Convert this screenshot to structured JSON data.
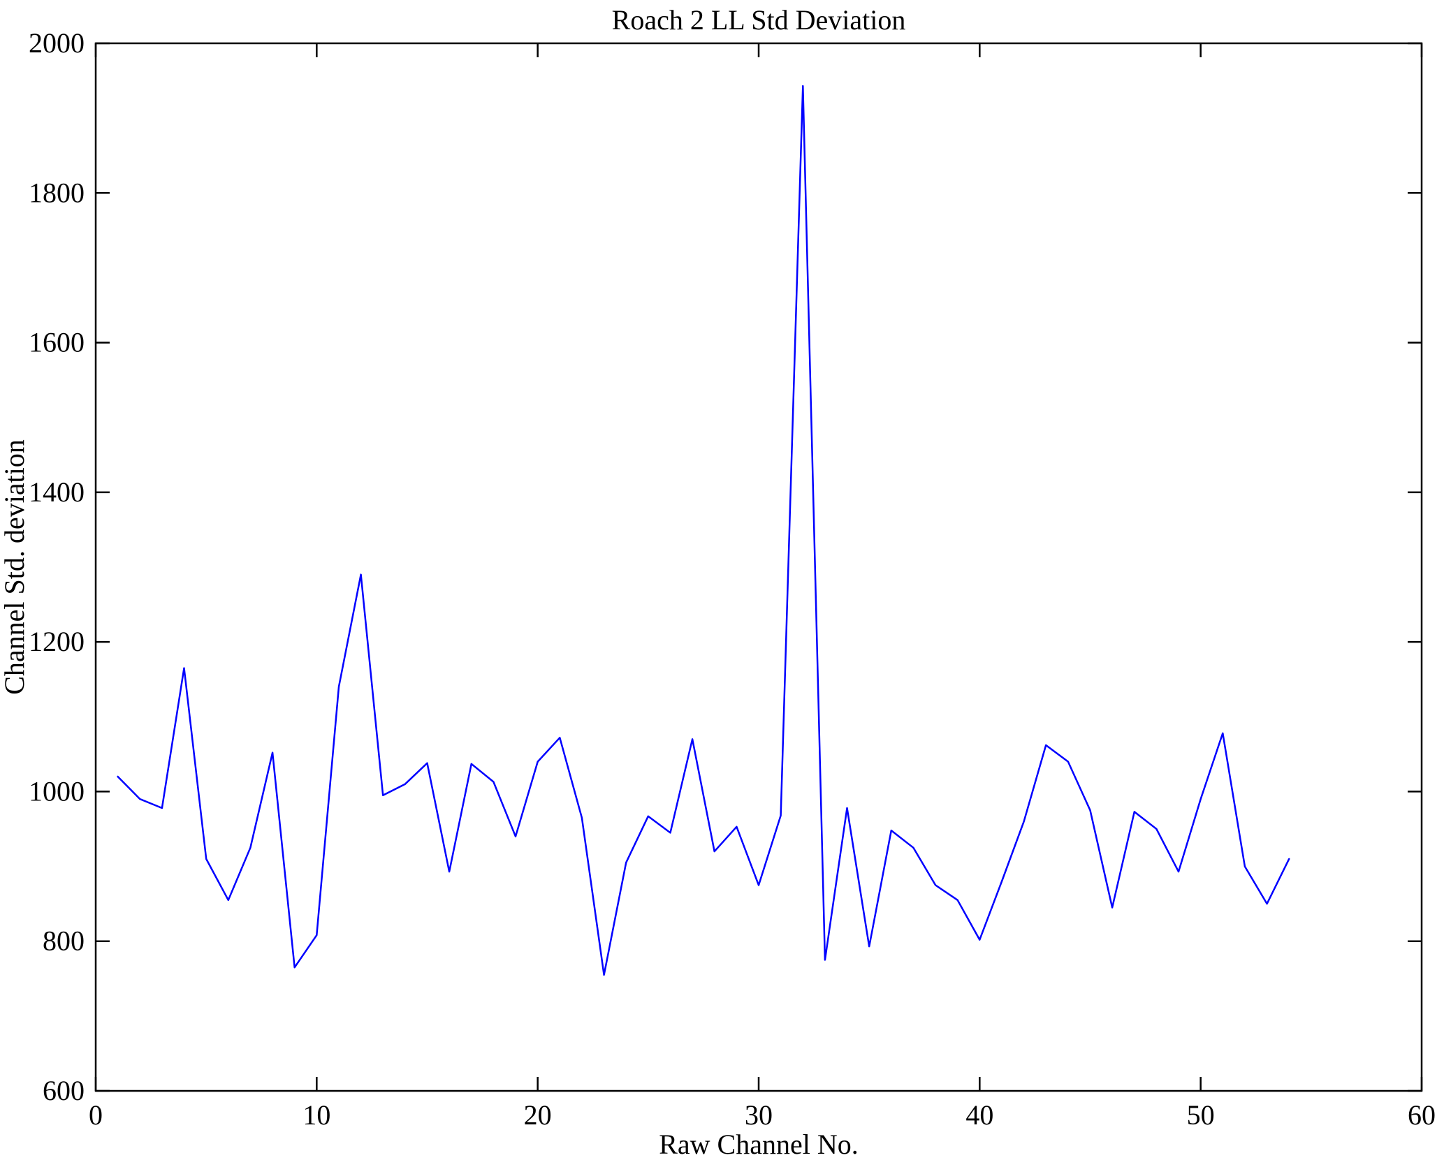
{
  "figure": {
    "background": "#ffffff"
  },
  "chart_data": {
    "type": "line",
    "title": "Roach 2 LL Std Deviation",
    "xlabel": "Raw Channel No.",
    "ylabel": "Channel Std. deviation",
    "xlim": [
      0,
      60
    ],
    "ylim": [
      600,
      2000
    ],
    "xticks": [
      0,
      10,
      20,
      30,
      40,
      50,
      60
    ],
    "yticks": [
      600,
      800,
      1000,
      1200,
      1400,
      1600,
      1800,
      2000
    ],
    "grid": false,
    "legend": "none",
    "line_color": "#0000ff",
    "axis_color": "#000000",
    "x": [
      1,
      2,
      3,
      4,
      5,
      6,
      7,
      8,
      9,
      10,
      11,
      12,
      13,
      14,
      15,
      16,
      17,
      18,
      19,
      20,
      21,
      22,
      23,
      24,
      25,
      26,
      27,
      28,
      29,
      30,
      31,
      32,
      33,
      34,
      35,
      36,
      37,
      38,
      39,
      40,
      41,
      42,
      43,
      44,
      45,
      46,
      47,
      48,
      49,
      50,
      51,
      52,
      53,
      54
    ],
    "values": [
      1020,
      990,
      978,
      1165,
      910,
      855,
      925,
      1052,
      765,
      808,
      1140,
      1290,
      995,
      1010,
      1038,
      893,
      1037,
      1013,
      940,
      1040,
      1072,
      965,
      755,
      905,
      967,
      945,
      1070,
      920,
      953,
      875,
      968,
      1943,
      775,
      978,
      793,
      948,
      925,
      875,
      855,
      802,
      880,
      960,
      1062,
      1040,
      975,
      845,
      973,
      950,
      893,
      990,
      1078,
      900,
      850,
      910
    ]
  }
}
